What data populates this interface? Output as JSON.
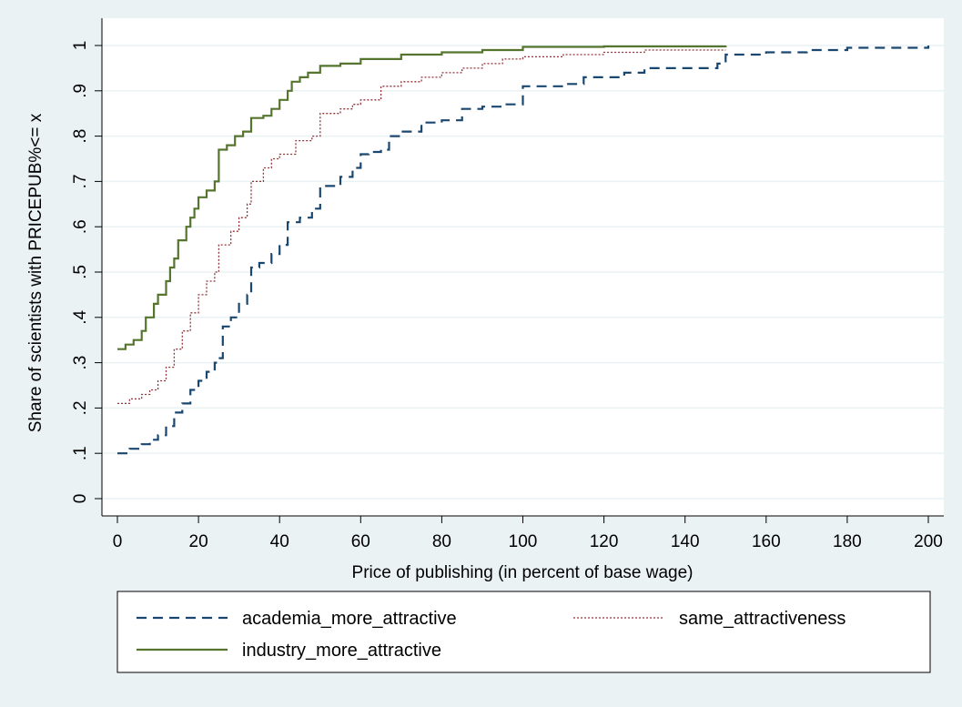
{
  "chart_data": {
    "type": "line",
    "title": "",
    "xlabel": "Price of publishing (in percent of base wage)",
    "ylabel": "Share of scientists with PRICEPUB%<= x",
    "xlim": [
      0,
      200
    ],
    "ylim": [
      0,
      1
    ],
    "x_ticks": [
      "0",
      "20",
      "40",
      "60",
      "80",
      "100",
      "120",
      "140",
      "160",
      "180",
      "200"
    ],
    "y_ticks": [
      "0",
      ".1",
      ".2",
      ".3",
      ".4",
      ".5",
      ".6",
      ".7",
      ".8",
      ".9",
      "1"
    ],
    "grid": "horizontal",
    "legend_position": "bottom",
    "series": [
      {
        "name": "academia_more_attractive",
        "color": "#1a476f",
        "style": "dashed",
        "points": [
          [
            0,
            0.1
          ],
          [
            3,
            0.11
          ],
          [
            6,
            0.12
          ],
          [
            8,
            0.13
          ],
          [
            10,
            0.14
          ],
          [
            12,
            0.16
          ],
          [
            14,
            0.19
          ],
          [
            16,
            0.21
          ],
          [
            18,
            0.24
          ],
          [
            20,
            0.26
          ],
          [
            22,
            0.28
          ],
          [
            24,
            0.3
          ],
          [
            25,
            0.31
          ],
          [
            26,
            0.38
          ],
          [
            28,
            0.4
          ],
          [
            30,
            0.43
          ],
          [
            32,
            0.45
          ],
          [
            33,
            0.51
          ],
          [
            35,
            0.52
          ],
          [
            38,
            0.54
          ],
          [
            40,
            0.56
          ],
          [
            42,
            0.61
          ],
          [
            45,
            0.62
          ],
          [
            48,
            0.64
          ],
          [
            50,
            0.69
          ],
          [
            55,
            0.71
          ],
          [
            58,
            0.73
          ],
          [
            60,
            0.76
          ],
          [
            62,
            0.765
          ],
          [
            65,
            0.77
          ],
          [
            67,
            0.8
          ],
          [
            70,
            0.81
          ],
          [
            75,
            0.83
          ],
          [
            80,
            0.835
          ],
          [
            85,
            0.86
          ],
          [
            90,
            0.865
          ],
          [
            95,
            0.87
          ],
          [
            100,
            0.91
          ],
          [
            110,
            0.915
          ],
          [
            115,
            0.93
          ],
          [
            125,
            0.94
          ],
          [
            130,
            0.95
          ],
          [
            148,
            0.96
          ],
          [
            150,
            0.98
          ],
          [
            160,
            0.985
          ],
          [
            170,
            0.99
          ],
          [
            180,
            0.995
          ],
          [
            200,
            1.0
          ]
        ]
      },
      {
        "name": "same_attractiveness",
        "color": "#90353b",
        "style": "dotted",
        "points": [
          [
            0,
            0.21
          ],
          [
            3,
            0.22
          ],
          [
            6,
            0.23
          ],
          [
            8,
            0.24
          ],
          [
            10,
            0.26
          ],
          [
            12,
            0.29
          ],
          [
            14,
            0.33
          ],
          [
            16,
            0.37
          ],
          [
            18,
            0.41
          ],
          [
            20,
            0.45
          ],
          [
            22,
            0.48
          ],
          [
            24,
            0.5
          ],
          [
            25,
            0.56
          ],
          [
            28,
            0.59
          ],
          [
            30,
            0.62
          ],
          [
            32,
            0.65
          ],
          [
            33,
            0.7
          ],
          [
            36,
            0.73
          ],
          [
            38,
            0.75
          ],
          [
            40,
            0.76
          ],
          [
            44,
            0.79
          ],
          [
            48,
            0.8
          ],
          [
            50,
            0.85
          ],
          [
            55,
            0.86
          ],
          [
            58,
            0.87
          ],
          [
            60,
            0.88
          ],
          [
            65,
            0.91
          ],
          [
            70,
            0.92
          ],
          [
            75,
            0.93
          ],
          [
            80,
            0.94
          ],
          [
            85,
            0.95
          ],
          [
            90,
            0.96
          ],
          [
            95,
            0.97
          ],
          [
            100,
            0.975
          ],
          [
            110,
            0.98
          ],
          [
            120,
            0.985
          ],
          [
            130,
            0.99
          ],
          [
            150,
            0.99
          ]
        ]
      },
      {
        "name": "industry_more_attractive",
        "color": "#55752f",
        "style": "solid",
        "points": [
          [
            0,
            0.33
          ],
          [
            2,
            0.34
          ],
          [
            4,
            0.35
          ],
          [
            6,
            0.37
          ],
          [
            7,
            0.4
          ],
          [
            9,
            0.43
          ],
          [
            10,
            0.45
          ],
          [
            12,
            0.48
          ],
          [
            13,
            0.51
          ],
          [
            14,
            0.53
          ],
          [
            15,
            0.57
          ],
          [
            17,
            0.6
          ],
          [
            18,
            0.62
          ],
          [
            19,
            0.64
          ],
          [
            20,
            0.665
          ],
          [
            22,
            0.68
          ],
          [
            24,
            0.7
          ],
          [
            25,
            0.77
          ],
          [
            27,
            0.78
          ],
          [
            29,
            0.8
          ],
          [
            31,
            0.81
          ],
          [
            33,
            0.84
          ],
          [
            36,
            0.845
          ],
          [
            38,
            0.86
          ],
          [
            40,
            0.88
          ],
          [
            42,
            0.9
          ],
          [
            43,
            0.92
          ],
          [
            45,
            0.93
          ],
          [
            47,
            0.94
          ],
          [
            50,
            0.955
          ],
          [
            55,
            0.96
          ],
          [
            60,
            0.97
          ],
          [
            70,
            0.98
          ],
          [
            80,
            0.985
          ],
          [
            90,
            0.99
          ],
          [
            100,
            0.997
          ],
          [
            120,
            0.998
          ],
          [
            150,
            1.0
          ]
        ]
      }
    ]
  }
}
